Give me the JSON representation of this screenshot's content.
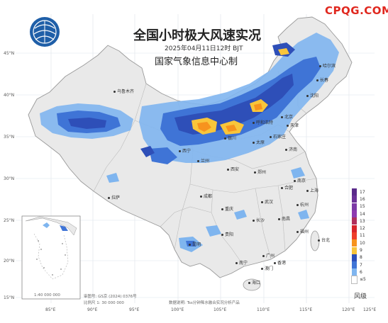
{
  "site_label": "CPQG.COM",
  "title": "全国小时极大风速实况",
  "subtitle": "2025年04月11日12时 BJT",
  "agency": "国家气象信息中心制",
  "latitude_labels": [
    "45°N",
    "40°N",
    "35°N",
    "30°N",
    "25°N",
    "20°N",
    "15°N"
  ],
  "longitude_labels": [
    "85°E",
    "90°E",
    "95°E",
    "100°E",
    "105°E",
    "110°E",
    "115°E",
    "120°E",
    "125°E"
  ],
  "cities": [
    {
      "name": "乌鲁木齐"
    },
    {
      "name": "哈尔滨"
    },
    {
      "name": "长春"
    },
    {
      "name": "沈阳"
    },
    {
      "name": "北京"
    },
    {
      "name": "天津"
    },
    {
      "name": "呼和浩特"
    },
    {
      "name": "石家庄"
    },
    {
      "name": "太原"
    },
    {
      "name": "济南"
    },
    {
      "name": "银川"
    },
    {
      "name": "西宁"
    },
    {
      "name": "兰州"
    },
    {
      "name": "西安"
    },
    {
      "name": "郑州"
    },
    {
      "name": "合肥"
    },
    {
      "name": "南京"
    },
    {
      "name": "上海"
    },
    {
      "name": "武汉"
    },
    {
      "name": "杭州"
    },
    {
      "name": "拉萨"
    },
    {
      "name": "成都"
    },
    {
      "name": "重庆"
    },
    {
      "name": "长沙"
    },
    {
      "name": "南昌"
    },
    {
      "name": "福州"
    },
    {
      "name": "贵阳"
    },
    {
      "name": "昆明"
    },
    {
      "name": "南宁"
    },
    {
      "name": "广州"
    },
    {
      "name": "香港"
    },
    {
      "name": "澳门"
    },
    {
      "name": "台北"
    },
    {
      "name": "海口"
    }
  ],
  "legend": {
    "title": "风级",
    "levels": [
      {
        "label": "17",
        "color": "#5a2a8a"
      },
      {
        "label": "16",
        "color": "#6b3298"
      },
      {
        "label": "15",
        "color": "#7c3aa6"
      },
      {
        "label": "14",
        "color": "#8e3ab0"
      },
      {
        "label": "13",
        "color": "#b0305c"
      },
      {
        "label": "12",
        "color": "#d8242b"
      },
      {
        "label": "11",
        "color": "#ee3e2a"
      },
      {
        "label": "10",
        "color": "#f7931e"
      },
      {
        "label": "9",
        "color": "#f9c53a"
      },
      {
        "label": "8",
        "color": "#2e4fb8"
      },
      {
        "label": "7",
        "color": "#3f74d6"
      },
      {
        "label": "6",
        "color": "#7fb5ef"
      },
      {
        "label": "≤5",
        "color": "#ffffff"
      }
    ]
  },
  "footnotes": {
    "map_review": "审图号: GS京 (2024) 0376号",
    "scale": "比例尺 1: 30 000 000",
    "data_note": "数据说明: Tss分钟降水融合实况分析产品",
    "inset_scale": "1:40 000 000"
  },
  "colors": {
    "land": "#e9e9e9",
    "sea": "#ffffff",
    "border": "#999999",
    "province": "#bcbcbc"
  }
}
